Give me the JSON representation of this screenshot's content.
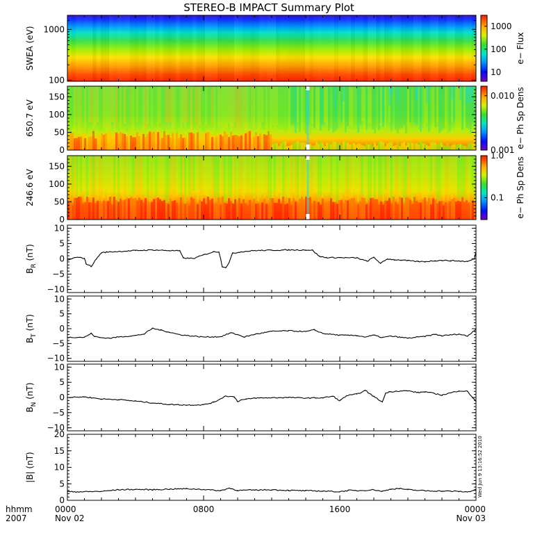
{
  "title": "STEREO-B IMPACT Summary Plot",
  "timestamp": "Wed Jun  9 13:16:52 2010",
  "x_axis": {
    "row_labels": [
      "hhmm",
      "2007"
    ],
    "ticks": [
      {
        "t": 0,
        "time": "0000",
        "date": "Nov 02"
      },
      {
        "t": 8,
        "time": "0800",
        "date": ""
      },
      {
        "t": 16,
        "time": "1600",
        "date": ""
      },
      {
        "t": 24,
        "time": "0000",
        "date": "Nov 03"
      }
    ]
  },
  "colorbars": [
    {
      "label": "e− Flux",
      "scale": "log",
      "range": [
        4,
        3000
      ],
      "ticks": [
        "1000",
        "100",
        "10"
      ],
      "tick_values": [
        1000,
        100,
        10
      ]
    },
    {
      "label": "e− Ph Sp Dens",
      "scale": "log",
      "range": [
        0.001,
        0.015
      ],
      "ticks": [
        "0.010",
        "0.001"
      ],
      "tick_values": [
        0.01,
        0.001
      ]
    },
    {
      "label": "e− Ph Sp Dens",
      "scale": "log",
      "range": [
        0.03,
        1.0
      ],
      "ticks": [
        "1.0",
        "0.1"
      ],
      "tick_values": [
        1.0,
        0.1
      ]
    }
  ],
  "chart_data": [
    {
      "type": "heatmap",
      "panel": "swea_spectrogram",
      "ylabel": "SWEA (eV)",
      "yscale": "log",
      "ylim": [
        95,
        1900
      ],
      "yticks": [
        "1000",
        "100"
      ],
      "ytick_values": [
        1000,
        100
      ],
      "x_hours": [
        0,
        24
      ],
      "description_values": {
        "energies_eV": [
          100,
          200,
          300,
          500,
          700,
          1000,
          1500
        ],
        "typical_flux": [
          3000,
          1500,
          600,
          250,
          80,
          20,
          5
        ]
      }
    },
    {
      "type": "heatmap",
      "panel": "pad_650eV",
      "ylabel": "650.7 eV",
      "ylim": [
        0,
        180
      ],
      "yticks": [
        "150",
        "100",
        "50",
        "0"
      ],
      "ytick_values": [
        150,
        100,
        50,
        0
      ],
      "x_hours": [
        0,
        24
      ],
      "data_gap_hour": 14.1
    },
    {
      "type": "heatmap",
      "panel": "pad_246eV",
      "ylabel": "246.6 eV",
      "ylim": [
        0,
        180
      ],
      "yticks": [
        "150",
        "100",
        "50",
        "0"
      ],
      "ytick_values": [
        150,
        100,
        50,
        0
      ],
      "x_hours": [
        0,
        24
      ],
      "data_gap_hour": 14.1
    },
    {
      "type": "line",
      "panel": "BR",
      "ylabel_main": "B",
      "ylabel_sub": "R",
      "ylabel_unit": " (nT)",
      "ylim": [
        -11,
        11
      ],
      "yticks": [
        "10",
        "5",
        "0",
        "−5",
        "−10"
      ],
      "ytick_values": [
        10,
        5,
        0,
        -5,
        -10
      ],
      "x": [
        0,
        0.5,
        1.0,
        1.1,
        1.4,
        1.7,
        2.0,
        2.3,
        3.0,
        4.0,
        5.0,
        6.0,
        6.6,
        6.8,
        7.4,
        8.0,
        8.6,
        8.9,
        9.0,
        9.1,
        9.3,
        9.5,
        9.7,
        10.2,
        11.0,
        12.0,
        13.0,
        14.0,
        14.4,
        14.8,
        15.2,
        16.0,
        17.0,
        17.6,
        18.0,
        18.4,
        18.8,
        19.2,
        19.6,
        20.0,
        20.6,
        21.0,
        21.6,
        22.0,
        22.5,
        23.0,
        23.5,
        23.9,
        24.0
      ],
      "y": [
        -0.5,
        0.5,
        0.2,
        -1.6,
        -2.5,
        0,
        2.0,
        2.2,
        2.4,
        2.7,
        2.9,
        2.7,
        2.6,
        0.3,
        0.1,
        1.3,
        2.3,
        2.3,
        0,
        -2.5,
        -2.8,
        -1.2,
        1.8,
        2.3,
        2.7,
        2.8,
        2.9,
        2.9,
        2.8,
        0.8,
        0.4,
        0.4,
        0.3,
        -0.8,
        0.5,
        -1.5,
        0,
        -0.3,
        -0.4,
        -0.6,
        -0.9,
        -0.9,
        -0.6,
        -0.5,
        -0.6,
        -0.7,
        -0.9,
        0,
        2.3
      ]
    },
    {
      "type": "line",
      "panel": "BT",
      "ylabel_main": "B",
      "ylabel_sub": "T",
      "ylabel_unit": " (nT)",
      "ylim": [
        -11,
        11
      ],
      "yticks": [
        "10",
        "5",
        "0",
        "−5",
        "−10"
      ],
      "ytick_values": [
        10,
        5,
        0,
        -5,
        -10
      ],
      "x": [
        0,
        1.0,
        1.4,
        1.6,
        1.9,
        2.5,
        3.0,
        4.0,
        4.5,
        5.0,
        5.5,
        6.0,
        6.5,
        7.0,
        8.0,
        9.0,
        9.6,
        10.0,
        10.4,
        11.0,
        12.0,
        13.0,
        14.0,
        14.5,
        15.0,
        16.0,
        17.0,
        17.5,
        18.0,
        18.5,
        19.0,
        20.0,
        21.0,
        21.6,
        22.0,
        23.0,
        23.5,
        24.0
      ],
      "y": [
        -2.9,
        -2.9,
        -1.6,
        -2.6,
        -3.0,
        -3.2,
        -2.8,
        -2.3,
        -1.8,
        0.1,
        -0.5,
        -1.2,
        -1.9,
        -2.3,
        -2.8,
        -2.7,
        -1.4,
        -2.0,
        -2.8,
        -1.9,
        -0.9,
        -0.7,
        -1.0,
        -0.4,
        -1.6,
        -2.2,
        -2.3,
        -2.8,
        -2.2,
        -3.0,
        -2.5,
        -3.2,
        -2.6,
        -1.9,
        -2.4,
        -1.8,
        -2.5,
        -0.1
      ]
    },
    {
      "type": "line",
      "panel": "BN",
      "ylabel_main": "B",
      "ylabel_sub": "N",
      "ylabel_unit": " (nT)",
      "ylim": [
        -11,
        11
      ],
      "yticks": [
        "10",
        "5",
        "0",
        "−5",
        "−10"
      ],
      "ytick_values": [
        10,
        5,
        0,
        -5,
        -10
      ],
      "x": [
        0,
        1.0,
        2.0,
        3.0,
        4.0,
        5.0,
        6.0,
        7.0,
        8.0,
        8.6,
        9.3,
        9.8,
        10.0,
        10.2,
        10.5,
        11.0,
        12.0,
        13.0,
        14.0,
        15.0,
        15.6,
        16.0,
        16.4,
        17.0,
        17.5,
        18.0,
        18.5,
        18.7,
        18.9,
        19.3,
        20.0,
        20.6,
        21.0,
        22.0,
        22.5,
        23.0,
        23.5,
        24.0
      ],
      "y": [
        0,
        0.2,
        -0.5,
        -0.7,
        -1.2,
        -1.8,
        -2.3,
        -2.5,
        -2.4,
        -1.6,
        0.5,
        0.2,
        -1.3,
        -0.8,
        -0.6,
        -0.2,
        -0.1,
        0,
        -0.2,
        -0.1,
        0.4,
        -1.1,
        0.6,
        1.1,
        2.3,
        0.3,
        -1.5,
        1.5,
        1.8,
        2.1,
        2.2,
        1.6,
        1.9,
        0.8,
        1.5,
        2.2,
        2.0,
        -1.3
      ]
    },
    {
      "type": "line",
      "panel": "Btot",
      "ylabel": "|B| (nT)",
      "ylim": [
        0,
        20
      ],
      "yticks": [
        "20",
        "15",
        "10",
        "5",
        "0"
      ],
      "ytick_values": [
        20,
        15,
        10,
        5,
        0
      ],
      "x": [
        0,
        1.0,
        2.0,
        3.0,
        4.0,
        5.0,
        6.0,
        7.0,
        8.0,
        9.0,
        9.5,
        10.0,
        11.0,
        12.0,
        13.0,
        14.0,
        15.0,
        16.0,
        16.5,
        17.0,
        18.0,
        18.5,
        19.0,
        19.5,
        20.0,
        21.0,
        22.0,
        23.0,
        23.5,
        24.0
      ],
      "y": [
        2.6,
        2.6,
        2.7,
        3.2,
        3.3,
        3.2,
        3.4,
        3.5,
        3.3,
        2.9,
        3.7,
        3.0,
        3.1,
        3.2,
        3.0,
        2.9,
        2.8,
        2.6,
        3.0,
        2.9,
        3.2,
        2.7,
        3.4,
        3.6,
        3.2,
        2.9,
        2.8,
        2.7,
        2.5,
        3.3
      ]
    }
  ]
}
